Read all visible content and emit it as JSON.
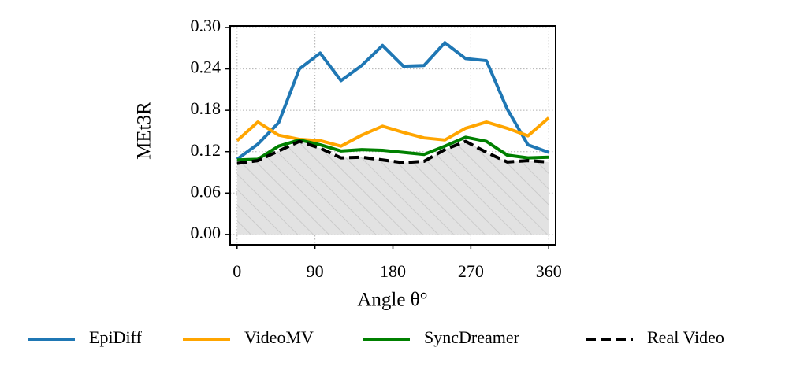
{
  "chart_data": {
    "type": "line",
    "y_label": "MEt3R",
    "x_label": "Angle θ°",
    "x": [
      0,
      24,
      48,
      72,
      96,
      120,
      144,
      168,
      192,
      216,
      240,
      264,
      288,
      312,
      336,
      360
    ],
    "series": [
      {
        "name": "EpiDiff",
        "color": "#1f77b4",
        "style": "solid",
        "values": [
          0.109,
          0.131,
          0.162,
          0.24,
          0.263,
          0.223,
          0.245,
          0.274,
          0.244,
          0.245,
          0.278,
          0.255,
          0.252,
          0.182,
          0.13,
          0.119
        ]
      },
      {
        "name": "VideoMV",
        "color": "#ffa500",
        "style": "solid",
        "values": [
          0.136,
          0.163,
          0.144,
          0.138,
          0.136,
          0.128,
          0.144,
          0.157,
          0.148,
          0.14,
          0.137,
          0.154,
          0.163,
          0.154,
          0.143,
          0.169
        ]
      },
      {
        "name": "SyncDreamer",
        "color": "#008000",
        "style": "solid",
        "values": [
          0.108,
          0.109,
          0.128,
          0.137,
          0.13,
          0.121,
          0.123,
          0.122,
          0.119,
          0.116,
          0.128,
          0.141,
          0.135,
          0.115,
          0.111,
          0.112
        ]
      },
      {
        "name": "Real Video",
        "color": "#000000",
        "style": "dashed",
        "fill_under": true,
        "values": [
          0.103,
          0.107,
          0.121,
          0.135,
          0.125,
          0.111,
          0.112,
          0.108,
          0.104,
          0.106,
          0.123,
          0.135,
          0.119,
          0.105,
          0.107,
          0.105
        ]
      }
    ],
    "xlim": [
      -8,
      368
    ],
    "xticks": [
      0,
      90,
      180,
      270,
      360
    ],
    "ylim": [
      -0.015,
      0.3
    ],
    "yticks": [
      {
        "value": 0,
        "label": "0.00"
      },
      {
        "value": 0.06,
        "label": "0.06"
      },
      {
        "value": 0.12,
        "label": "0.12"
      },
      {
        "value": 0.18,
        "label": "0.18"
      },
      {
        "value": 0.24,
        "label": "0.24"
      },
      {
        "value": 0.3,
        "label": "0.30"
      }
    ],
    "grid": true,
    "legend": "bottom"
  }
}
